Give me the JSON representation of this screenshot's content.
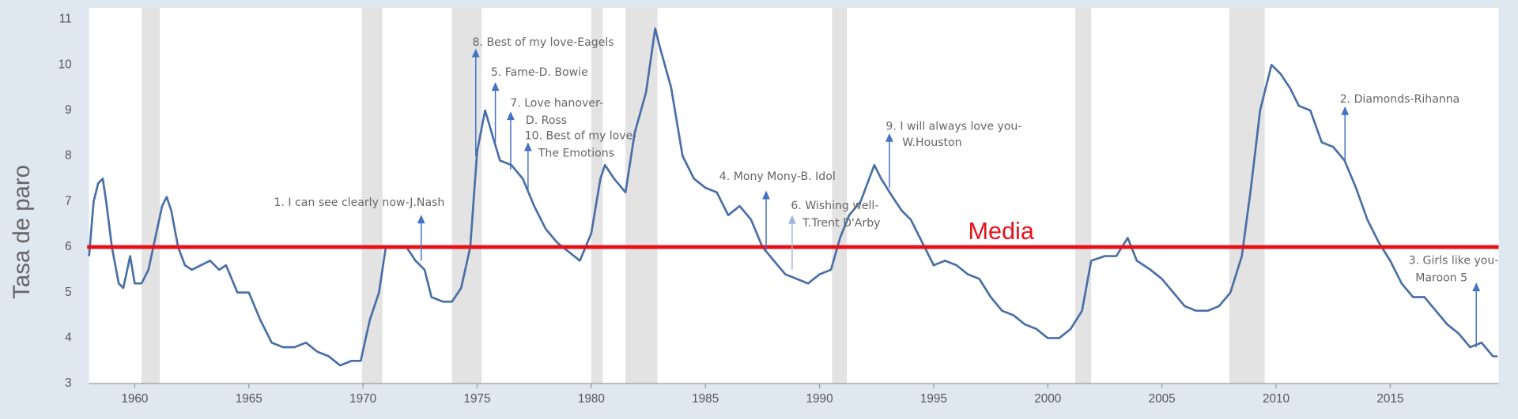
{
  "chart_data": {
    "type": "line",
    "y_label": "Tasa de paro",
    "color": "#4a6fa5",
    "xlim": [
      1958,
      2019.75
    ],
    "ylim": [
      3,
      11
    ],
    "xticks": [
      1960,
      1965,
      1970,
      1975,
      1980,
      1985,
      1990,
      1995,
      2000,
      2005,
      2010,
      2015
    ],
    "yticks": [
      3,
      4,
      5,
      6,
      7,
      8,
      9,
      10,
      11
    ],
    "recession_color": "#e3e3e3",
    "recessions": [
      [
        1960.3,
        1961.1
      ],
      [
        1969.95,
        1970.85
      ],
      [
        1973.9,
        1975.2
      ],
      [
        1980.0,
        1980.5
      ],
      [
        1981.5,
        1982.9
      ],
      [
        1990.55,
        1991.2
      ],
      [
        2001.2,
        2001.9
      ],
      [
        2007.95,
        2009.5
      ]
    ],
    "x": [
      1958.0,
      1958.2,
      1958.4,
      1958.6,
      1958.75,
      1959.0,
      1959.3,
      1959.5,
      1959.8,
      1960.0,
      1960.3,
      1960.6,
      1960.9,
      1961.2,
      1961.4,
      1961.6,
      1961.9,
      1962.2,
      1962.5,
      1962.9,
      1963.3,
      1963.7,
      1964.0,
      1964.5,
      1965.0,
      1965.5,
      1966.0,
      1966.5,
      1967.0,
      1967.5,
      1968.0,
      1968.5,
      1969.0,
      1969.5,
      1969.9,
      1970.3,
      1970.7,
      1971.0,
      1971.5,
      1971.9,
      1972.3,
      1972.7,
      1973.0,
      1973.5,
      1973.9,
      1974.3,
      1974.7,
      1975.0,
      1975.35,
      1975.7,
      1976.0,
      1976.5,
      1977.0,
      1977.5,
      1978.0,
      1978.5,
      1979.0,
      1979.5,
      1980.0,
      1980.4,
      1980.6,
      1981.0,
      1981.5,
      1981.9,
      1982.4,
      1982.8,
      1983.0,
      1983.5,
      1984.0,
      1984.5,
      1985.0,
      1985.5,
      1986.0,
      1986.5,
      1987.0,
      1987.5,
      1988.0,
      1988.5,
      1989.0,
      1989.5,
      1990.0,
      1990.5,
      1990.9,
      1991.3,
      1991.8,
      1992.4,
      1992.7,
      1993.2,
      1993.6,
      1994.0,
      1994.5,
      1995.0,
      1995.5,
      1996.0,
      1996.5,
      1997.0,
      1997.5,
      1998.0,
      1998.5,
      1999.0,
      1999.5,
      2000.0,
      2000.5,
      2001.0,
      2001.5,
      2001.9,
      2002.5,
      2003.0,
      2003.5,
      2003.9,
      2004.5,
      2005.0,
      2005.5,
      2006.0,
      2006.5,
      2007.0,
      2007.5,
      2008.0,
      2008.5,
      2008.9,
      2009.3,
      2009.8,
      2010.2,
      2010.6,
      2011.0,
      2011.5,
      2012.0,
      2012.5,
      2013.0,
      2013.5,
      2014.0,
      2014.5,
      2015.0,
      2015.5,
      2016.0,
      2016.5,
      2017.0,
      2017.5,
      2018.0,
      2018.5,
      2019.0,
      2019.5,
      2019.7
    ],
    "values": [
      5.8,
      7.0,
      7.4,
      7.5,
      7.0,
      6.0,
      5.2,
      5.1,
      5.8,
      5.2,
      5.2,
      5.5,
      6.2,
      6.9,
      7.1,
      6.8,
      6.0,
      5.6,
      5.5,
      5.6,
      5.7,
      5.5,
      5.6,
      5.0,
      5.0,
      4.4,
      3.9,
      3.8,
      3.8,
      3.9,
      3.7,
      3.6,
      3.4,
      3.5,
      3.5,
      4.4,
      5.0,
      6.0,
      6.0,
      6.0,
      5.7,
      5.5,
      4.9,
      4.8,
      4.8,
      5.1,
      6.0,
      8.1,
      9.0,
      8.4,
      7.9,
      7.8,
      7.5,
      6.9,
      6.4,
      6.1,
      5.9,
      5.7,
      6.3,
      7.5,
      7.8,
      7.5,
      7.2,
      8.5,
      9.4,
      10.8,
      10.4,
      9.5,
      8.0,
      7.5,
      7.3,
      7.2,
      6.7,
      6.9,
      6.6,
      6.0,
      5.7,
      5.4,
      5.3,
      5.2,
      5.4,
      5.5,
      6.2,
      6.7,
      7.0,
      7.8,
      7.5,
      7.1,
      6.8,
      6.6,
      6.1,
      5.6,
      5.7,
      5.6,
      5.4,
      5.3,
      4.9,
      4.6,
      4.5,
      4.3,
      4.2,
      4.0,
      4.0,
      4.2,
      4.6,
      5.7,
      5.8,
      5.8,
      6.2,
      5.7,
      5.5,
      5.3,
      5.0,
      4.7,
      4.6,
      4.6,
      4.7,
      5.0,
      5.8,
      7.3,
      9.0,
      10.0,
      9.8,
      9.5,
      9.1,
      9.0,
      8.3,
      8.2,
      7.9,
      7.3,
      6.6,
      6.1,
      5.7,
      5.2,
      4.9,
      4.9,
      4.6,
      4.3,
      4.1,
      3.8,
      3.9,
      3.6,
      3.6
    ],
    "mean": {
      "label": "Media",
      "value": 6,
      "color": "#e8111b"
    },
    "annotations": [
      {
        "text": [
          "1. I can see clearly now-J.Nash"
        ],
        "x": 1972.55,
        "y": 6.71,
        "base": 5.7,
        "color": "#4472c4"
      },
      {
        "text": [
          "8. Best of my love-Eagels"
        ],
        "x": 1974.94,
        "y": 10.36,
        "base": 8.0,
        "color": "#4472c4"
      },
      {
        "text": [
          "5. Fame-D. Bowie"
        ],
        "x": 1975.8,
        "y": 9.62,
        "base": 8.3,
        "color": "#4472c4"
      },
      {
        "text": [
          "7. Love hanover-",
          "D. Ross"
        ],
        "x": 1976.47,
        "y": 8.98,
        "base": 7.7,
        "color": "#4472c4"
      },
      {
        "text": [
          "10. Best of my love-",
          "The Emotions"
        ],
        "x": 1977.23,
        "y": 8.3,
        "base": 7.2,
        "color": "#4472c4"
      },
      {
        "text": [
          "4. Mony Mony-B. Idol"
        ],
        "x": 1987.66,
        "y": 7.24,
        "base": 5.9,
        "color": "#4472c4"
      },
      {
        "text": [
          "6. Wishing well-",
          "T.Trent D'Arby"
        ],
        "x": 1988.8,
        "y": 6.7,
        "base": 5.5,
        "color": "#9db5dd"
      },
      {
        "text": [
          "9. I will always love you-",
          "W.Houston"
        ],
        "x": 1993.06,
        "y": 8.5,
        "base": 7.3,
        "color": "#4472c4"
      },
      {
        "text": [
          "2. Diamonds-Rihanna"
        ],
        "x": 2013.02,
        "y": 9.09,
        "base": 7.9,
        "color": "#4472c4"
      },
      {
        "text": [
          "3. Girls like you-",
          "Maroon 5"
        ],
        "x": 2018.77,
        "y": 5.22,
        "base": 3.8,
        "color": "#4472c4"
      }
    ]
  }
}
